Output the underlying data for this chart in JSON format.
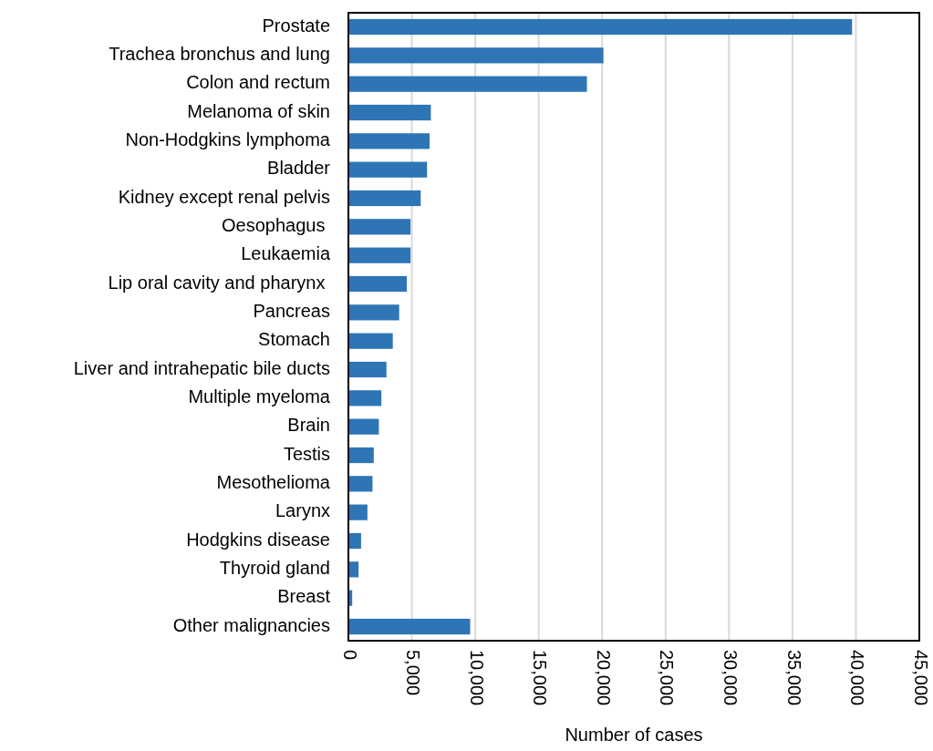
{
  "chart_data": {
    "type": "bar",
    "orientation": "horizontal",
    "xlabel": "Number of cases",
    "categories": [
      "Prostate",
      "Trachea bronchus and lung",
      "Colon and rectum",
      "Melanoma of skin",
      "Non-Hodgkins lymphoma",
      "Bladder",
      "Kidney except renal pelvis",
      "Oesophagus ",
      "Leukaemia",
      "Lip oral cavity and pharynx ",
      "Pancreas",
      "Stomach",
      "Liver and intrahepatic bile ducts",
      "Multiple myeloma",
      "Brain",
      "Testis",
      "Mesothelioma",
      "Larynx",
      "Hodgkins disease",
      "Thyroid gland",
      "Breast",
      "Other malignancies"
    ],
    "values": [
      39700,
      20100,
      18800,
      6500,
      6400,
      6200,
      5700,
      4900,
      4900,
      4600,
      4000,
      3500,
      3000,
      2600,
      2400,
      2000,
      1900,
      1500,
      1000,
      800,
      300,
      9600
    ],
    "color": "#2e75b6",
    "xlim": [
      0,
      45000
    ],
    "xticks": [
      {
        "value": 0,
        "label": "0"
      },
      {
        "value": 5000,
        "label": "5,000"
      },
      {
        "value": 10000,
        "label": "10,000"
      },
      {
        "value": 15000,
        "label": "15,000"
      },
      {
        "value": 20000,
        "label": "20,000"
      },
      {
        "value": 25000,
        "label": "25,000"
      },
      {
        "value": 30000,
        "label": "30,000"
      },
      {
        "value": 35000,
        "label": "35,000"
      },
      {
        "value": 40000,
        "label": "40,000"
      },
      {
        "value": 45000,
        "label": "45,000"
      }
    ],
    "grid": "x"
  }
}
